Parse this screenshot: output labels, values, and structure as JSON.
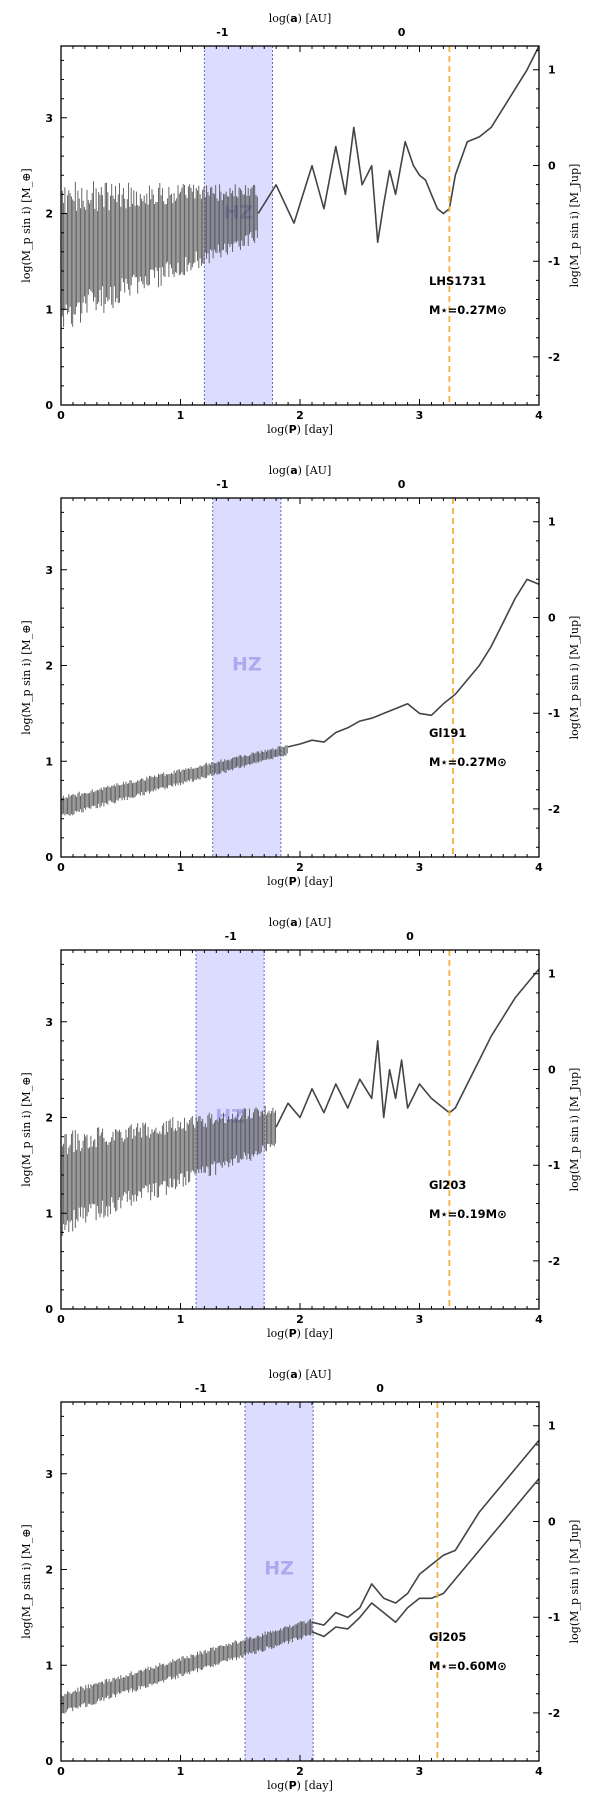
{
  "colors": {
    "hz_fill": "#dcdcff",
    "hz_edge": "#6666bb",
    "hz_text": "#aaaaee",
    "snowline": "#f5b041",
    "curve": "#444444",
    "axis": "#000000"
  },
  "labels": {
    "top_xlabel_prefix": "log(",
    "top_xlabel_bold": "a",
    "top_xlabel_suffix": ") [AU]",
    "xlabel_prefix": "log(",
    "xlabel_bold": "P",
    "xlabel_suffix": ") [day]",
    "ylabel_left": "log(M_p sin i) [M_⊕]",
    "ylabel_right": "log(M_p sin i) [M_Jup]",
    "hz": "HZ"
  },
  "chart_data": [
    {
      "type": "line",
      "star": "LHS1731",
      "mass_label": "M⋆=0.27M⊙",
      "xlabel": "log(P) [day]",
      "ylabel": "log(Mp sin i) [M⊕]",
      "ylabel_right": "log(Mp sin i) [MJup]",
      "top_xlabel": "log(a) [AU]",
      "xlim": [
        0,
        4
      ],
      "ylim": [
        0,
        3.75
      ],
      "x_ticks": [
        "0",
        "1",
        "2",
        "3",
        "4"
      ],
      "y_ticks": [
        "0",
        "1",
        "2",
        "3"
      ],
      "right_ticks": [
        "-2",
        "-1",
        "0",
        "1"
      ],
      "top_ticks": [
        {
          "label": "-1",
          "logP": 1.35
        },
        {
          "label": "0",
          "logP": 2.85
        }
      ],
      "hz_range": [
        1.2,
        1.77
      ],
      "snowline_logP": 3.25,
      "noise_region": {
        "x_end": 1.65,
        "y_center_start": 1.55,
        "y_center_end": 2.0,
        "amplitude_start": 0.8,
        "amplitude_end": 0.3
      },
      "series": [
        {
          "name": "detection limit",
          "x": [
            1.65,
            1.8,
            1.95,
            2.1,
            2.2,
            2.3,
            2.38,
            2.45,
            2.52,
            2.6,
            2.65,
            2.7,
            2.75,
            2.8,
            2.88,
            2.95,
            3.0,
            3.05,
            3.1,
            3.15,
            3.2,
            3.25,
            3.3,
            3.4,
            3.5,
            3.6,
            3.7,
            3.8,
            3.9,
            4.0
          ],
          "y": [
            2.0,
            2.3,
            1.9,
            2.5,
            2.05,
            2.7,
            2.2,
            2.9,
            2.3,
            2.5,
            1.7,
            2.1,
            2.45,
            2.2,
            2.75,
            2.5,
            2.4,
            2.35,
            2.2,
            2.05,
            2.0,
            2.05,
            2.4,
            2.75,
            2.8,
            2.9,
            3.1,
            3.3,
            3.5,
            3.75
          ]
        }
      ]
    },
    {
      "type": "line",
      "star": "Gl191",
      "mass_label": "M⋆=0.27M⊙",
      "xlabel": "log(P) [day]",
      "ylabel": "log(Mp sin i) [M⊕]",
      "ylabel_right": "log(Mp sin i) [MJup]",
      "top_xlabel": "log(a) [AU]",
      "xlim": [
        0,
        4
      ],
      "ylim": [
        0,
        3.75
      ],
      "x_ticks": [
        "0",
        "1",
        "2",
        "3",
        "4"
      ],
      "y_ticks": [
        "0",
        "1",
        "2",
        "3"
      ],
      "right_ticks": [
        "-2",
        "-1",
        "0",
        "1"
      ],
      "top_ticks": [
        {
          "label": "-1",
          "logP": 1.35
        },
        {
          "label": "0",
          "logP": 2.85
        }
      ],
      "hz_range": [
        1.27,
        1.84
      ],
      "snowline_logP": 3.28,
      "noise_region": {
        "x_end": 1.9,
        "y_center_start": 0.52,
        "y_center_end": 1.12,
        "amplitude_start": 0.12,
        "amplitude_end": 0.06
      },
      "series": [
        {
          "name": "detection limit",
          "x": [
            1.9,
            2.0,
            2.1,
            2.2,
            2.3,
            2.4,
            2.5,
            2.6,
            2.7,
            2.8,
            2.9,
            3.0,
            3.1,
            3.2,
            3.3,
            3.4,
            3.5,
            3.6,
            3.7,
            3.8,
            3.9,
            4.0
          ],
          "y": [
            1.15,
            1.18,
            1.22,
            1.2,
            1.3,
            1.35,
            1.42,
            1.45,
            1.5,
            1.55,
            1.6,
            1.5,
            1.48,
            1.6,
            1.7,
            1.85,
            2.0,
            2.2,
            2.45,
            2.7,
            2.9,
            2.85
          ]
        }
      ]
    },
    {
      "type": "line",
      "star": "Gl203",
      "mass_label": "M⋆=0.19M⊙",
      "xlabel": "log(P) [day]",
      "ylabel": "log(Mp sin i) [M⊕]",
      "ylabel_right": "log(Mp sin i) [MJup]",
      "top_xlabel": "log(a) [AU]",
      "xlim": [
        0,
        4
      ],
      "ylim": [
        0,
        3.75
      ],
      "x_ticks": [
        "0",
        "1",
        "2",
        "3",
        "4"
      ],
      "y_ticks": [
        "0",
        "1",
        "2",
        "3"
      ],
      "right_ticks": [
        "-2",
        "-1",
        "0",
        "1"
      ],
      "top_ticks": [
        {
          "label": "-1",
          "logP": 1.42
        },
        {
          "label": "0",
          "logP": 2.92
        }
      ],
      "hz_range": [
        1.13,
        1.7
      ],
      "snowline_logP": 3.25,
      "noise_region": {
        "x_end": 1.8,
        "y_center_start": 1.3,
        "y_center_end": 1.9,
        "amplitude_start": 0.55,
        "amplitude_end": 0.25
      },
      "series": [
        {
          "name": "detection limit",
          "x": [
            1.8,
            1.9,
            2.0,
            2.1,
            2.2,
            2.3,
            2.4,
            2.5,
            2.6,
            2.65,
            2.7,
            2.75,
            2.8,
            2.85,
            2.9,
            3.0,
            3.1,
            3.2,
            3.25,
            3.3,
            3.4,
            3.5,
            3.6,
            3.7,
            3.8,
            3.9,
            4.0
          ],
          "y": [
            1.9,
            2.15,
            2.0,
            2.3,
            2.05,
            2.35,
            2.1,
            2.4,
            2.2,
            2.8,
            2.0,
            2.5,
            2.2,
            2.6,
            2.1,
            2.35,
            2.2,
            2.1,
            2.05,
            2.1,
            2.35,
            2.6,
            2.85,
            3.05,
            3.25,
            3.4,
            3.55
          ]
        }
      ]
    },
    {
      "type": "line",
      "star": "Gl205",
      "mass_label": "M⋆=0.60M⊙",
      "xlabel": "log(P) [day]",
      "ylabel": "log(Mp sin i) [M⊕]",
      "ylabel_right": "log(Mp sin i) [MJup]",
      "top_xlabel": "log(a) [AU]",
      "xlim": [
        0,
        4
      ],
      "ylim": [
        0,
        3.75
      ],
      "x_ticks": [
        "0",
        "1",
        "2",
        "3",
        "4"
      ],
      "y_ticks": [
        "0",
        "1",
        "2",
        "3"
      ],
      "right_ticks": [
        "-2",
        "-1",
        "0",
        "1"
      ],
      "top_ticks": [
        {
          "label": "-1",
          "logP": 1.17
        },
        {
          "label": "0",
          "logP": 2.67
        }
      ],
      "hz_range": [
        1.54,
        2.11
      ],
      "snowline_logP": 3.15,
      "noise_region": {
        "x_end": 2.1,
        "y_center_start": 0.6,
        "y_center_end": 1.4,
        "amplitude_start": 0.12,
        "amplitude_end": 0.1
      },
      "series": [
        {
          "name": "detection limit (upper)",
          "x": [
            2.1,
            2.2,
            2.3,
            2.4,
            2.5,
            2.6,
            2.7,
            2.8,
            2.9,
            3.0,
            3.1,
            3.2,
            3.3,
            3.4,
            3.5,
            3.6,
            3.7,
            3.8,
            3.9,
            4.0
          ],
          "y": [
            1.45,
            1.42,
            1.55,
            1.5,
            1.6,
            1.85,
            1.7,
            1.65,
            1.75,
            1.95,
            2.05,
            2.15,
            2.2,
            2.4,
            2.6,
            2.75,
            2.9,
            3.05,
            3.2,
            3.35
          ]
        },
        {
          "name": "detection limit (lower)",
          "x": [
            2.1,
            2.2,
            2.3,
            2.4,
            2.5,
            2.6,
            2.7,
            2.8,
            2.9,
            3.0,
            3.1,
            3.2,
            3.3,
            3.4,
            3.5,
            3.6,
            3.7,
            3.8,
            3.9,
            4.0
          ],
          "y": [
            1.35,
            1.3,
            1.4,
            1.38,
            1.5,
            1.65,
            1.55,
            1.45,
            1.6,
            1.7,
            1.7,
            1.75,
            1.9,
            2.05,
            2.2,
            2.35,
            2.5,
            2.65,
            2.8,
            2.95
          ]
        }
      ]
    }
  ]
}
